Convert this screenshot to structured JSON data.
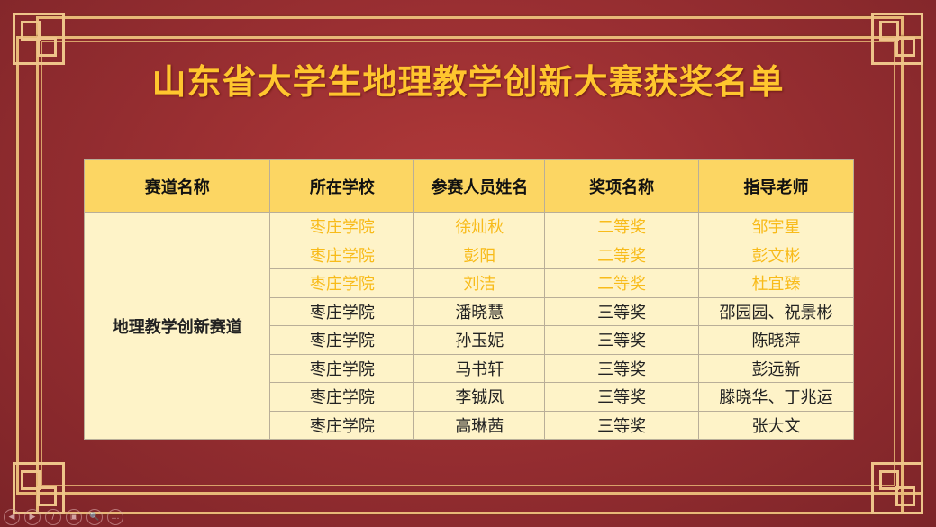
{
  "title": "山东省大学生地理教学创新大赛获奖名单",
  "table": {
    "headers": [
      "赛道名称",
      "所在学校",
      "参赛人员姓名",
      "奖项名称",
      "指导老师"
    ],
    "track": "地理教学创新赛道",
    "rows": [
      [
        "枣庄学院",
        "徐灿秋",
        "二等奖",
        "邹宇星"
      ],
      [
        "枣庄学院",
        "彭阳",
        "二等奖",
        "彭文彬"
      ],
      [
        "枣庄学院",
        "刘洁",
        "二等奖",
        "杜宜臻"
      ],
      [
        "枣庄学院",
        "潘晓慧",
        "三等奖",
        "邵园园、祝景彬"
      ],
      [
        "枣庄学院",
        "孙玉妮",
        "三等奖",
        "陈晓萍"
      ],
      [
        "枣庄学院",
        "马书轩",
        "三等奖",
        "彭远新"
      ],
      [
        "枣庄学院",
        "李铖凤",
        "三等奖",
        "滕晓华、丁兆运"
      ],
      [
        "枣庄学院",
        "高琳茜",
        "三等奖",
        "张大文"
      ]
    ],
    "highlight_color": "#f8bb1a"
  },
  "controls": [
    {
      "icon": "previous-icon",
      "glyph": "◀"
    },
    {
      "icon": "next-icon",
      "glyph": "▶"
    },
    {
      "icon": "pen-icon",
      "glyph": "/"
    },
    {
      "icon": "slides-icon",
      "glyph": "▣"
    },
    {
      "icon": "zoom-icon",
      "glyph": "🔍"
    },
    {
      "icon": "more-icon",
      "glyph": "…"
    }
  ]
}
